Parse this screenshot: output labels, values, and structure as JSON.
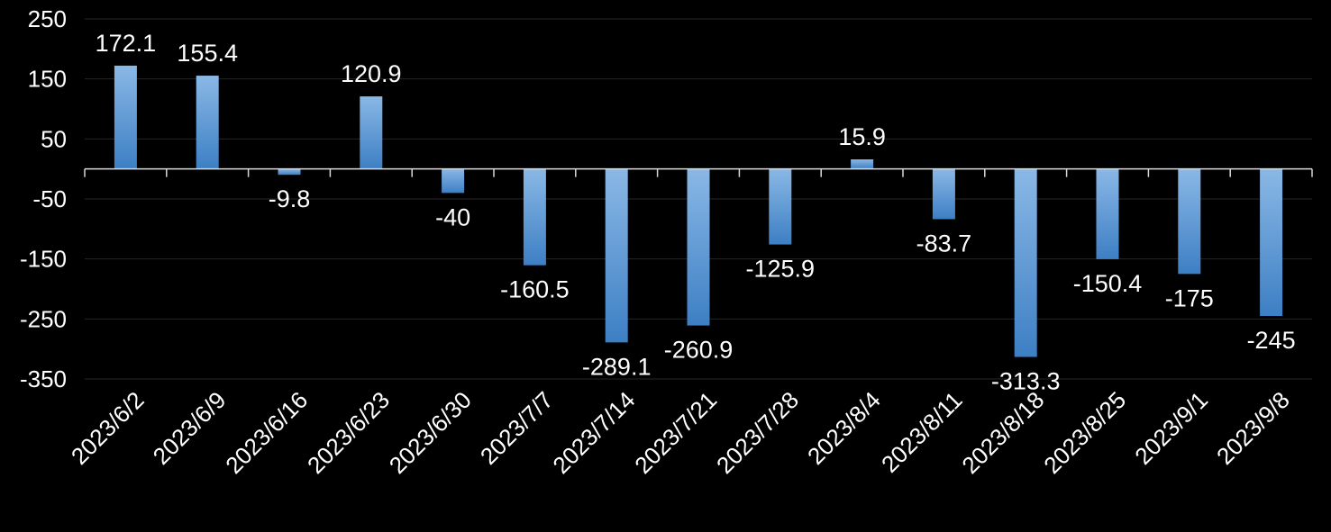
{
  "chart_data": {
    "type": "bar",
    "categories": [
      "2023/6/2",
      "2023/6/9",
      "2023/6/16",
      "2023/6/23",
      "2023/6/30",
      "2023/7/7",
      "2023/7/14",
      "2023/7/21",
      "2023/7/28",
      "2023/8/4",
      "2023/8/11",
      "2023/8/18",
      "2023/8/25",
      "2023/9/1",
      "2023/9/8"
    ],
    "values": [
      172.1,
      155.4,
      -9.8,
      120.9,
      -40,
      -160.5,
      -289.1,
      -260.9,
      -125.9,
      15.9,
      -83.7,
      -313.3,
      -150.4,
      -175,
      -245
    ],
    "value_labels": [
      "172.1",
      "155.4",
      "-9.8",
      "120.9",
      "-40",
      "-160.5",
      "-289.1",
      "-260.9",
      "-125.9",
      "15.9",
      "-83.7",
      "-313.3",
      "-150.4",
      "-175",
      "-245"
    ],
    "yticks": [
      250,
      150,
      50,
      -50,
      -150,
      -250,
      -350
    ],
    "ytick_labels": [
      "250",
      "150",
      "50",
      "-50",
      "-150",
      "-250",
      "-350"
    ],
    "ylim": [
      -350,
      250
    ],
    "grid": true,
    "legend": "none",
    "title": "",
    "xlabel": "",
    "ylabel": ""
  },
  "colors": {
    "background": "#000000",
    "bar_top": "#8ab8e6",
    "bar_bottom": "#3d7fc4",
    "grid": "#262626",
    "axis": "#d9d9d9",
    "text": "#ffffff"
  }
}
